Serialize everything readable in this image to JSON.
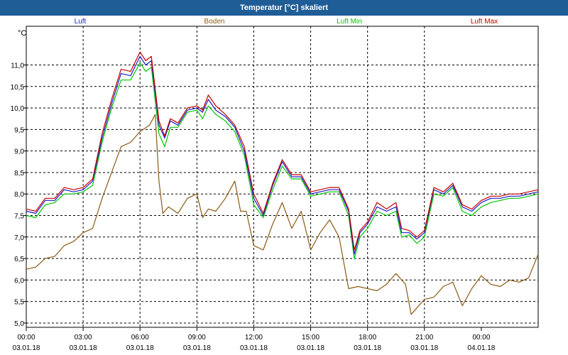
{
  "window": {
    "title": "Temperatur [°C] skaliert"
  },
  "chart_data": {
    "type": "line",
    "title": "Temperatur [°C] skaliert",
    "ylabel": "°C",
    "ylim": [
      4.9,
      11.9
    ],
    "y_ticks": [
      "5,0",
      "5,5",
      "6,0",
      "6,5",
      "7,0",
      "7,5",
      "8,0",
      "8,5",
      "9,0",
      "9,5",
      "10,0",
      "10,5",
      "11,0"
    ],
    "x_ticks": [
      {
        "time": "00:00",
        "date": "03.01.18"
      },
      {
        "time": "03:00",
        "date": "03.01.18"
      },
      {
        "time": "06:00",
        "date": "03.01.18"
      },
      {
        "time": "09:00",
        "date": "03.01.18"
      },
      {
        "time": "12:00",
        "date": "03.01.18"
      },
      {
        "time": "15:00",
        "date": "03.01.18"
      },
      {
        "time": "18:00",
        "date": "03.01.18"
      },
      {
        "time": "21:00",
        "date": "03.01.18"
      },
      {
        "time": "00:00",
        "date": "04.01.18"
      }
    ],
    "xlim_hours": [
      0,
      24
    ],
    "grid": true,
    "legend_placement": "top",
    "series": [
      {
        "name": "Luft",
        "color": "#1e1ec8",
        "points": [
          [
            0,
            7.6
          ],
          [
            0.5,
            7.55
          ],
          [
            1,
            7.85
          ],
          [
            1.5,
            7.85
          ],
          [
            2,
            8.1
          ],
          [
            2.5,
            8.05
          ],
          [
            3,
            8.1
          ],
          [
            3.5,
            8.3
          ],
          [
            4,
            9.3
          ],
          [
            4.5,
            10.1
          ],
          [
            5,
            10.8
          ],
          [
            5.5,
            10.75
          ],
          [
            6,
            11.2
          ],
          [
            6.3,
            11.0
          ],
          [
            6.6,
            11.1
          ],
          [
            7,
            9.6
          ],
          [
            7.3,
            9.3
          ],
          [
            7.6,
            9.7
          ],
          [
            8,
            9.6
          ],
          [
            8.5,
            9.95
          ],
          [
            9,
            10.0
          ],
          [
            9.3,
            9.9
          ],
          [
            9.6,
            10.2
          ],
          [
            10,
            9.95
          ],
          [
            10.5,
            9.8
          ],
          [
            11,
            9.55
          ],
          [
            11.5,
            9.0
          ],
          [
            12,
            7.9
          ],
          [
            12.5,
            7.5
          ],
          [
            13,
            8.2
          ],
          [
            13.5,
            8.75
          ],
          [
            14,
            8.4
          ],
          [
            14.5,
            8.4
          ],
          [
            15,
            8.0
          ],
          [
            15.5,
            8.05
          ],
          [
            16,
            8.1
          ],
          [
            16.5,
            8.1
          ],
          [
            17,
            7.6
          ],
          [
            17.3,
            6.6
          ],
          [
            17.6,
            7.1
          ],
          [
            18,
            7.3
          ],
          [
            18.5,
            7.7
          ],
          [
            19,
            7.6
          ],
          [
            19.5,
            7.7
          ],
          [
            19.8,
            7.1
          ],
          [
            20.2,
            7.1
          ],
          [
            20.6,
            6.95
          ],
          [
            21,
            7.1
          ],
          [
            21.5,
            8.1
          ],
          [
            22,
            8.0
          ],
          [
            22.5,
            8.2
          ],
          [
            23,
            7.7
          ],
          [
            23.5,
            7.6
          ],
          [
            24,
            7.8
          ],
          [
            24.5,
            7.9
          ],
          [
            25,
            7.9
          ],
          [
            25.5,
            7.95
          ],
          [
            26,
            7.95
          ],
          [
            26.5,
            8.0
          ],
          [
            27,
            8.05
          ]
        ]
      },
      {
        "name": "Boden",
        "color": "#8b5a14",
        "points": [
          [
            0,
            6.25
          ],
          [
            0.5,
            6.3
          ],
          [
            1,
            6.5
          ],
          [
            1.5,
            6.55
          ],
          [
            2,
            6.8
          ],
          [
            2.5,
            6.9
          ],
          [
            3,
            7.1
          ],
          [
            3.5,
            7.2
          ],
          [
            4,
            7.9
          ],
          [
            4.5,
            8.5
          ],
          [
            5,
            9.1
          ],
          [
            5.5,
            9.2
          ],
          [
            6,
            9.45
          ],
          [
            6.5,
            9.6
          ],
          [
            6.8,
            9.85
          ],
          [
            7,
            8.3
          ],
          [
            7.2,
            7.55
          ],
          [
            7.5,
            7.7
          ],
          [
            8,
            7.55
          ],
          [
            8.5,
            7.9
          ],
          [
            9,
            8.0
          ],
          [
            9.3,
            7.45
          ],
          [
            9.6,
            7.65
          ],
          [
            10,
            7.6
          ],
          [
            10.5,
            7.9
          ],
          [
            11,
            8.3
          ],
          [
            11.3,
            7.6
          ],
          [
            11.6,
            7.6
          ],
          [
            12,
            6.8
          ],
          [
            12.5,
            6.7
          ],
          [
            13,
            7.3
          ],
          [
            13.5,
            7.8
          ],
          [
            14,
            7.2
          ],
          [
            14.5,
            7.6
          ],
          [
            15,
            6.7
          ],
          [
            15.5,
            7.1
          ],
          [
            16,
            7.4
          ],
          [
            16.5,
            7.0
          ],
          [
            17,
            5.8
          ],
          [
            17.5,
            5.85
          ],
          [
            18,
            5.8
          ],
          [
            18.5,
            5.75
          ],
          [
            19,
            5.9
          ],
          [
            19.5,
            6.15
          ],
          [
            20,
            5.9
          ],
          [
            20.3,
            5.2
          ],
          [
            20.6,
            5.35
          ],
          [
            21,
            5.55
          ],
          [
            21.5,
            5.6
          ],
          [
            22,
            5.85
          ],
          [
            22.5,
            5.95
          ],
          [
            23,
            5.4
          ],
          [
            23.5,
            5.8
          ],
          [
            24,
            6.1
          ],
          [
            24.5,
            5.9
          ],
          [
            25,
            5.85
          ],
          [
            25.5,
            6.0
          ],
          [
            26,
            5.95
          ],
          [
            26.5,
            6.05
          ],
          [
            27,
            6.6
          ]
        ]
      },
      {
        "name": "Luft Min",
        "color": "#00c800",
        "points": [
          [
            0,
            7.5
          ],
          [
            0.5,
            7.45
          ],
          [
            1,
            7.75
          ],
          [
            1.5,
            7.8
          ],
          [
            2,
            8.0
          ],
          [
            2.5,
            8.0
          ],
          [
            3,
            8.05
          ],
          [
            3.5,
            8.2
          ],
          [
            4,
            9.2
          ],
          [
            4.5,
            10.0
          ],
          [
            5,
            10.65
          ],
          [
            5.5,
            10.65
          ],
          [
            6,
            11.05
          ],
          [
            6.3,
            10.85
          ],
          [
            6.6,
            10.95
          ],
          [
            7,
            9.4
          ],
          [
            7.3,
            9.1
          ],
          [
            7.6,
            9.55
          ],
          [
            8,
            9.55
          ],
          [
            8.5,
            9.9
          ],
          [
            9,
            9.95
          ],
          [
            9.3,
            9.75
          ],
          [
            9.6,
            10.05
          ],
          [
            10,
            9.85
          ],
          [
            10.5,
            9.7
          ],
          [
            11,
            9.45
          ],
          [
            11.5,
            8.9
          ],
          [
            12,
            7.75
          ],
          [
            12.5,
            7.45
          ],
          [
            13,
            8.1
          ],
          [
            13.5,
            8.65
          ],
          [
            14,
            8.35
          ],
          [
            14.5,
            8.35
          ],
          [
            15,
            7.95
          ],
          [
            15.5,
            8.0
          ],
          [
            16,
            8.05
          ],
          [
            16.5,
            8.05
          ],
          [
            17,
            7.5
          ],
          [
            17.3,
            6.5
          ],
          [
            17.6,
            7.0
          ],
          [
            18,
            7.2
          ],
          [
            18.5,
            7.6
          ],
          [
            19,
            7.5
          ],
          [
            19.5,
            7.6
          ],
          [
            19.8,
            7.0
          ],
          [
            20.2,
            7.05
          ],
          [
            20.6,
            6.85
          ],
          [
            21,
            7.0
          ],
          [
            21.5,
            8.0
          ],
          [
            22,
            7.95
          ],
          [
            22.5,
            8.15
          ],
          [
            23,
            7.6
          ],
          [
            23.5,
            7.5
          ],
          [
            24,
            7.7
          ],
          [
            24.5,
            7.8
          ],
          [
            25,
            7.85
          ],
          [
            25.5,
            7.9
          ],
          [
            26,
            7.9
          ],
          [
            26.5,
            7.95
          ],
          [
            27,
            8.0
          ]
        ]
      },
      {
        "name": "Luft Max",
        "color": "#c80000",
        "points": [
          [
            0,
            7.65
          ],
          [
            0.5,
            7.6
          ],
          [
            1,
            7.9
          ],
          [
            1.5,
            7.9
          ],
          [
            2,
            8.15
          ],
          [
            2.5,
            8.1
          ],
          [
            3,
            8.15
          ],
          [
            3.5,
            8.35
          ],
          [
            4,
            9.4
          ],
          [
            4.5,
            10.2
          ],
          [
            5,
            10.9
          ],
          [
            5.5,
            10.85
          ],
          [
            6,
            11.3
          ],
          [
            6.3,
            11.1
          ],
          [
            6.6,
            11.2
          ],
          [
            7,
            9.7
          ],
          [
            7.3,
            9.35
          ],
          [
            7.6,
            9.75
          ],
          [
            8,
            9.65
          ],
          [
            8.5,
            10.0
          ],
          [
            9,
            10.05
          ],
          [
            9.3,
            9.95
          ],
          [
            9.6,
            10.3
          ],
          [
            10,
            10.05
          ],
          [
            10.5,
            9.85
          ],
          [
            11,
            9.6
          ],
          [
            11.5,
            9.1
          ],
          [
            12,
            8.0
          ],
          [
            12.5,
            7.55
          ],
          [
            13,
            8.25
          ],
          [
            13.5,
            8.8
          ],
          [
            14,
            8.45
          ],
          [
            14.5,
            8.45
          ],
          [
            15,
            8.05
          ],
          [
            15.5,
            8.1
          ],
          [
            16,
            8.15
          ],
          [
            16.5,
            8.15
          ],
          [
            17,
            7.65
          ],
          [
            17.3,
            6.7
          ],
          [
            17.6,
            7.15
          ],
          [
            18,
            7.35
          ],
          [
            18.5,
            7.8
          ],
          [
            19,
            7.65
          ],
          [
            19.5,
            7.8
          ],
          [
            19.8,
            7.2
          ],
          [
            20.2,
            7.15
          ],
          [
            20.6,
            7.0
          ],
          [
            21,
            7.15
          ],
          [
            21.5,
            8.15
          ],
          [
            22,
            8.05
          ],
          [
            22.5,
            8.25
          ],
          [
            23,
            7.75
          ],
          [
            23.5,
            7.65
          ],
          [
            24,
            7.85
          ],
          [
            24.5,
            7.95
          ],
          [
            25,
            7.95
          ],
          [
            25.5,
            8.0
          ],
          [
            26,
            8.0
          ],
          [
            26.5,
            8.05
          ],
          [
            27,
            8.1
          ]
        ]
      }
    ]
  }
}
